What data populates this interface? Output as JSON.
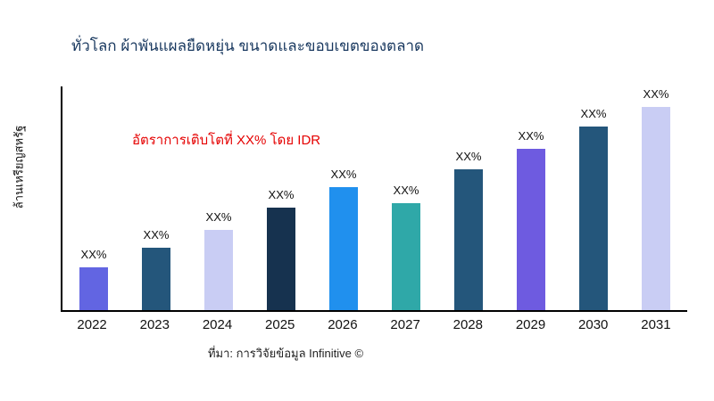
{
  "header": {
    "title": "ทั่วโลก ผ้าพันแผลยืดหยุ่น ขนาดและขอบเขตของตลาด",
    "title_color": "#17375e"
  },
  "annotation": {
    "text": "อัตราการเติบโตที่ XX% โดย IDR",
    "color": "#e50000"
  },
  "source": {
    "text": "ที่มา: การวิจัยข้อมูล Infinitive ©"
  },
  "chart_data": {
    "type": "bar",
    "title": "ทั่วโลก ผ้าพันแผลยืดหยุ่น ขนาดและขอบเขตของตลาด",
    "xlabel": "",
    "ylabel": "ล้านเหรียญสหรัฐ",
    "categories": [
      "2022",
      "2023",
      "2024",
      "2025",
      "2026",
      "2027",
      "2028",
      "2029",
      "2030",
      "2031"
    ],
    "values": [
      19,
      28,
      36,
      46,
      55,
      48,
      63,
      72,
      82,
      91
    ],
    "bar_labels": [
      "XX%",
      "XX%",
      "XX%",
      "XX%",
      "XX%",
      "XX%",
      "XX%",
      "XX%",
      "XX%",
      "XX%"
    ],
    "bar_colors": [
      "#6265e2",
      "#24567b",
      "#c9cdf4",
      "#16324f",
      "#2090ee",
      "#2fa8a8",
      "#24567b",
      "#6e5be0",
      "#24567b",
      "#c9cdf4"
    ],
    "ylim": [
      0,
      100
    ],
    "grid": false,
    "legend": false,
    "value_unit": "relative-height-percent"
  }
}
